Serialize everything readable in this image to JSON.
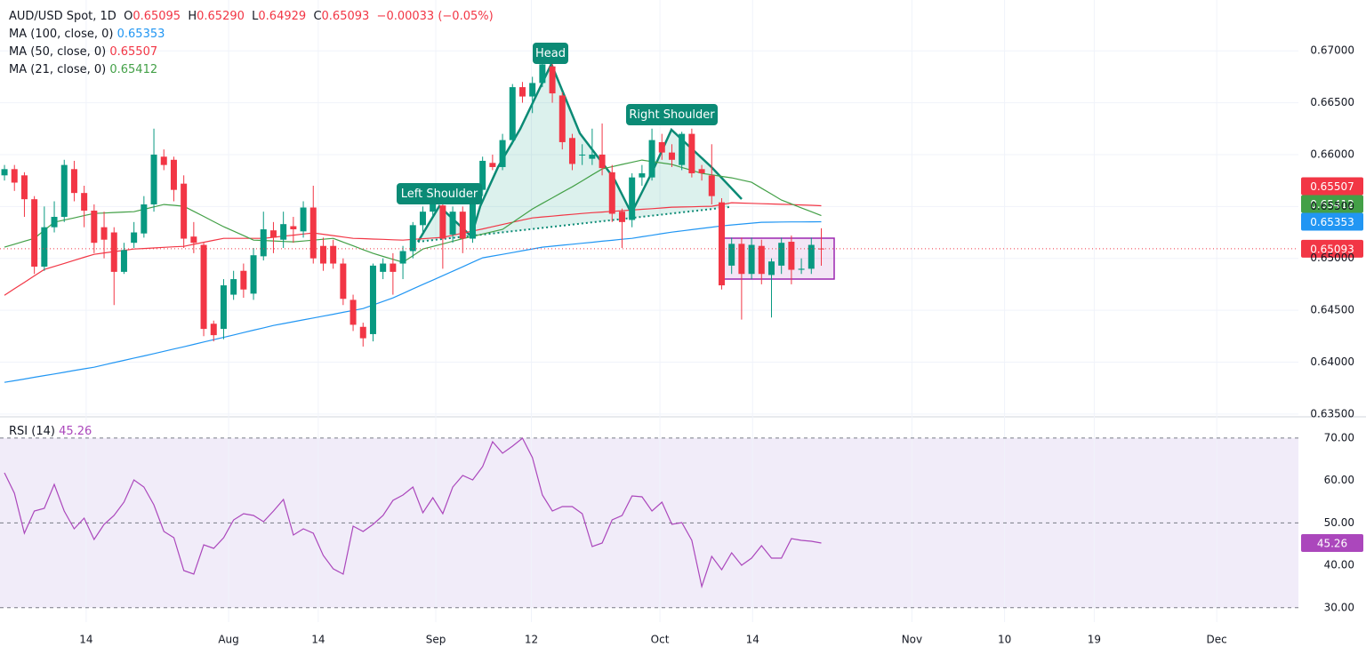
{
  "chart_data": [
    {
      "type": "candlestick",
      "title": "AUD/USD Spot, 1D",
      "ohlc_legend": [
        {
          "label": "O",
          "value": "0.65095"
        },
        {
          "label": "H",
          "value": "0.65290"
        },
        {
          "label": "L",
          "value": "0.64929"
        },
        {
          "label": "C",
          "value": "0.65093"
        }
      ],
      "change": "−0.00033 (−0.05%)",
      "up_color": "#089981",
      "down_color": "#f23645",
      "open": [
        0.658,
        0.6586,
        0.658,
        0.6557,
        0.6492,
        0.653,
        0.654,
        0.6586,
        0.6563,
        0.6546,
        0.653,
        0.6525,
        0.6487,
        0.6515,
        0.6524,
        0.6552,
        0.6598,
        0.6595,
        0.6572,
        0.6521,
        0.6513,
        0.6437,
        0.6432,
        0.6465,
        0.6488,
        0.6466,
        0.6502,
        0.6527,
        0.6518,
        0.6531,
        0.6526,
        0.6549,
        0.6512,
        0.6512,
        0.6495,
        0.646,
        0.6434,
        0.6427,
        0.6487,
        0.6495,
        0.6495,
        0.6507,
        0.6532,
        0.6545,
        0.6551,
        0.6523,
        0.6545,
        0.6519,
        0.6566,
        0.6592,
        0.6588,
        0.6614,
        0.6665,
        0.6656,
        0.6669,
        0.6685,
        0.6657,
        0.6616,
        0.66,
        0.6596,
        0.66,
        0.6583,
        0.6545,
        0.6537,
        0.6578,
        0.6578,
        0.6612,
        0.6602,
        0.659,
        0.662,
        0.6586,
        0.658,
        0.6554,
        0.6493,
        0.6514,
        0.6485,
        0.6512,
        0.6484,
        0.6493,
        0.6516,
        0.6489,
        0.649,
        0.65095
      ],
      "high": [
        0.659,
        0.659,
        0.6583,
        0.656,
        0.655,
        0.6555,
        0.6595,
        0.6594,
        0.657,
        0.6552,
        0.6545,
        0.653,
        0.6515,
        0.6535,
        0.656,
        0.6625,
        0.6605,
        0.6598,
        0.658,
        0.6535,
        0.6515,
        0.644,
        0.648,
        0.6488,
        0.6495,
        0.651,
        0.6545,
        0.6535,
        0.6545,
        0.654,
        0.6555,
        0.657,
        0.652,
        0.6518,
        0.65,
        0.6465,
        0.6438,
        0.6495,
        0.65,
        0.6505,
        0.6512,
        0.6535,
        0.655,
        0.656,
        0.6555,
        0.655,
        0.655,
        0.6568,
        0.6598,
        0.66,
        0.662,
        0.6668,
        0.667,
        0.6675,
        0.6692,
        0.669,
        0.666,
        0.662,
        0.661,
        0.6625,
        0.663,
        0.659,
        0.6548,
        0.6582,
        0.659,
        0.6625,
        0.662,
        0.661,
        0.6622,
        0.6625,
        0.659,
        0.661,
        0.6558,
        0.652,
        0.652,
        0.652,
        0.6518,
        0.65,
        0.652,
        0.6522,
        0.65,
        0.652,
        0.6529
      ],
      "low": [
        0.6575,
        0.6565,
        0.654,
        0.6485,
        0.6488,
        0.6525,
        0.6535,
        0.6555,
        0.653,
        0.6505,
        0.65,
        0.6455,
        0.6485,
        0.651,
        0.652,
        0.6545,
        0.6585,
        0.6555,
        0.651,
        0.6505,
        0.6425,
        0.642,
        0.6422,
        0.646,
        0.6462,
        0.646,
        0.6498,
        0.6505,
        0.651,
        0.6515,
        0.652,
        0.6495,
        0.6488,
        0.649,
        0.6455,
        0.643,
        0.6415,
        0.642,
        0.648,
        0.6465,
        0.648,
        0.65,
        0.6525,
        0.654,
        0.649,
        0.6515,
        0.6505,
        0.6515,
        0.656,
        0.6585,
        0.6585,
        0.661,
        0.665,
        0.664,
        0.6665,
        0.665,
        0.6605,
        0.6585,
        0.659,
        0.659,
        0.658,
        0.6535,
        0.651,
        0.653,
        0.657,
        0.6575,
        0.6595,
        0.6588,
        0.6585,
        0.6578,
        0.6575,
        0.6552,
        0.647,
        0.6485,
        0.6441,
        0.648,
        0.6475,
        0.6443,
        0.6485,
        0.6475,
        0.6485,
        0.6485,
        0.64929
      ],
      "close": [
        0.6586,
        0.6573,
        0.6557,
        0.6492,
        0.653,
        0.654,
        0.659,
        0.6563,
        0.6546,
        0.6515,
        0.6518,
        0.6487,
        0.6508,
        0.6525,
        0.6552,
        0.66,
        0.659,
        0.6566,
        0.6519,
        0.6515,
        0.6432,
        0.6426,
        0.6474,
        0.648,
        0.647,
        0.6503,
        0.6528,
        0.652,
        0.6533,
        0.6528,
        0.6549,
        0.65,
        0.6495,
        0.6495,
        0.6461,
        0.6436,
        0.6423,
        0.6493,
        0.6495,
        0.6487,
        0.6507,
        0.6532,
        0.6545,
        0.6553,
        0.6519,
        0.6545,
        0.6519,
        0.6566,
        0.6594,
        0.6588,
        0.6614,
        0.6665,
        0.6656,
        0.6669,
        0.6687,
        0.6659,
        0.6612,
        0.6591,
        0.66,
        0.66,
        0.6587,
        0.6543,
        0.6535,
        0.6578,
        0.6582,
        0.6614,
        0.6602,
        0.6595,
        0.662,
        0.6582,
        0.6582,
        0.656,
        0.6474,
        0.6514,
        0.6485,
        0.6513,
        0.6485,
        0.6497,
        0.6515,
        0.6489,
        0.649,
        0.6513,
        0.65093
      ],
      "close_label": "0.65093",
      "series": [
        {
          "name": "MA (100, close, 0)",
          "color": "#2196f3",
          "last_label": "0.65353",
          "values": [
            0.63805,
            0.63821,
            0.63837,
            0.63854,
            0.6387,
            0.63886,
            0.63902,
            0.63919,
            0.63935,
            0.63951,
            0.63973,
            0.63995,
            0.64017,
            0.64039,
            0.6406,
            0.64082,
            0.64104,
            0.64126,
            0.64148,
            0.64171,
            0.64194,
            0.64216,
            0.64239,
            0.64262,
            0.64285,
            0.64308,
            0.6433,
            0.64353,
            0.64371,
            0.64389,
            0.64407,
            0.64425,
            0.64443,
            0.64461,
            0.6448,
            0.64498,
            0.64516,
            0.6455,
            0.64585,
            0.64619,
            0.64662,
            0.64705,
            0.64748,
            0.6479,
            0.64833,
            0.64876,
            0.64919,
            0.64962,
            0.65005,
            0.65022,
            0.65039,
            0.65056,
            0.65074,
            0.65091,
            0.65108,
            0.65117,
            0.65127,
            0.65136,
            0.65146,
            0.65155,
            0.65165,
            0.65174,
            0.65184,
            0.65193,
            0.65208,
            0.65223,
            0.65238,
            0.65253,
            0.65265,
            0.65277,
            0.65289,
            0.65301,
            0.65313,
            0.65322,
            0.65331,
            0.65339,
            0.65348,
            0.65349,
            0.6535,
            0.65351,
            0.65351,
            0.65352,
            0.65353
          ]
        },
        {
          "name": "MA (50, close, 0)",
          "color": "#f23645",
          "last_label": "0.65507",
          "values": [
            0.64645,
            0.64707,
            0.64769,
            0.64831,
            0.64893,
            0.64922,
            0.64951,
            0.64981,
            0.6501,
            0.65039,
            0.65052,
            0.65065,
            0.65077,
            0.6509,
            0.65095,
            0.651,
            0.65106,
            0.65111,
            0.65116,
            0.65135,
            0.65155,
            0.65174,
            0.65193,
            0.65193,
            0.65193,
            0.65193,
            0.65193,
            0.65203,
            0.65214,
            0.65224,
            0.65235,
            0.65245,
            0.65232,
            0.65219,
            0.65206,
            0.65193,
            0.6519,
            0.65186,
            0.65183,
            0.65179,
            0.65176,
            0.65183,
            0.65189,
            0.65196,
            0.65202,
            0.65223,
            0.65243,
            0.65264,
            0.65284,
            0.65305,
            0.65326,
            0.65348,
            0.65369,
            0.6539,
            0.65399,
            0.65407,
            0.65416,
            0.65424,
            0.65433,
            0.6544,
            0.65446,
            0.65453,
            0.65459,
            0.65466,
            0.65473,
            0.65479,
            0.65486,
            0.65493,
            0.65495,
            0.65497,
            0.655,
            0.65502,
            0.65519,
            0.65536,
            0.65533,
            0.6553,
            0.65527,
            0.65524,
            0.65521,
            0.65518,
            0.65515,
            0.65511,
            0.65507
          ]
        },
        {
          "name": "MA (21, close, 0)",
          "color": "#43a047",
          "last_label": "0.65412",
          "values": [
            0.65108,
            0.65136,
            0.65165,
            0.65193,
            0.65271,
            0.65348,
            0.65369,
            0.6539,
            0.65412,
            0.65433,
            0.65437,
            0.65442,
            0.65446,
            0.6545,
            0.65473,
            0.65496,
            0.65519,
            0.65511,
            0.65502,
            0.65453,
            0.65404,
            0.65354,
            0.65305,
            0.65262,
            0.65219,
            0.65176,
            0.65172,
            0.65168,
            0.65163,
            0.65159,
            0.65167,
            0.65176,
            0.65184,
            0.65193,
            0.65157,
            0.65121,
            0.65084,
            0.65048,
            0.65019,
            0.64991,
            0.64962,
            0.65026,
            0.6509,
            0.65115,
            0.6514,
            0.65165,
            0.6519,
            0.65212,
            0.65235,
            0.65257,
            0.65279,
            0.65345,
            0.6541,
            0.65476,
            0.6553,
            0.65583,
            0.65637,
            0.6569,
            0.65747,
            0.65805,
            0.65862,
            0.65883,
            0.65905,
            0.65926,
            0.65947,
            0.65933,
            0.65919,
            0.65905,
            0.65876,
            0.65848,
            0.65819,
            0.65805,
            0.6579,
            0.65776,
            0.65755,
            0.65733,
            0.65676,
            0.65619,
            0.65562,
            0.65525,
            0.65487,
            0.6545,
            0.65412
          ]
        }
      ],
      "ylim": [
        0.6349,
        0.6749
      ],
      "yticks": [
        {
          "value": 0.635,
          "label": "0.63500"
        },
        {
          "value": 0.64,
          "label": "0.64000"
        },
        {
          "value": 0.645,
          "label": "0.64500"
        },
        {
          "value": 0.65,
          "label": "0.65000"
        },
        {
          "value": 0.655,
          "label": "0.65500"
        },
        {
          "value": 0.66,
          "label": "0.66000"
        },
        {
          "value": 0.665,
          "label": "0.66500"
        },
        {
          "value": 0.67,
          "label": "0.67000"
        }
      ],
      "grid": true,
      "annotations": [
        {
          "text": "Left Shoulder"
        },
        {
          "text": "Head"
        },
        {
          "text": "Right Shoulder"
        }
      ]
    },
    {
      "type": "line",
      "series": [
        {
          "name": "RSI (14)",
          "color": "#ab47bc",
          "last_label": "45.26",
          "values": [
            61.8,
            56.98,
            47.55,
            52.79,
            53.42,
            59.08,
            52.79,
            48.6,
            51.12,
            46.08,
            49.65,
            51.74,
            54.89,
            60.13,
            58.45,
            54.26,
            47.97,
            46.5,
            38.75,
            37.91,
            44.83,
            43.99,
            46.5,
            50.7,
            52.16,
            51.74,
            50.28,
            52.79,
            55.52,
            47.13,
            48.6,
            47.55,
            42.31,
            39.17,
            37.91,
            49.23,
            47.97,
            49.65,
            51.74,
            55.31,
            56.56,
            58.45,
            52.37,
            55.94,
            52.16,
            58.45,
            61.18,
            60.13,
            63.27,
            69.14,
            66.42,
            68.09,
            69.98,
            65.37,
            56.56,
            52.79,
            53.84,
            53.84,
            52.16,
            44.41,
            45.25,
            50.7,
            51.74,
            56.36,
            56.15,
            52.79,
            54.89,
            49.65,
            50.07,
            45.88,
            34.98,
            42.1,
            38.96,
            42.94,
            40.01,
            41.68,
            44.62,
            41.68,
            41.68,
            46.29,
            45.88,
            45.67,
            45.26
          ]
        }
      ],
      "levels": [
        30,
        50,
        70
      ],
      "band_color": "#f1ecf9",
      "ylim": [
        26.6,
        74.8
      ],
      "yticks": [
        {
          "value": 30,
          "label": "30.00"
        },
        {
          "value": 40,
          "label": "40.00"
        },
        {
          "value": 50,
          "label": "50.00"
        },
        {
          "value": 60,
          "label": "60.00"
        },
        {
          "value": 70,
          "label": "70.00"
        }
      ],
      "xlim": [
        -0.45,
        129.9
      ],
      "xticks": [
        {
          "value": 8.2,
          "label": "14"
        },
        {
          "value": 22.5,
          "label": "Aug"
        },
        {
          "value": 31.5,
          "label": "14"
        },
        {
          "value": 43.3,
          "label": "Sep"
        },
        {
          "value": 52.9,
          "label": "12"
        },
        {
          "value": 65.8,
          "label": "Oct"
        },
        {
          "value": 75.1,
          "label": "14"
        },
        {
          "value": 91.1,
          "label": "Nov"
        },
        {
          "value": 100.4,
          "label": "10"
        },
        {
          "value": 109.4,
          "label": "19"
        },
        {
          "value": 121.7,
          "label": "Dec"
        }
      ]
    }
  ]
}
